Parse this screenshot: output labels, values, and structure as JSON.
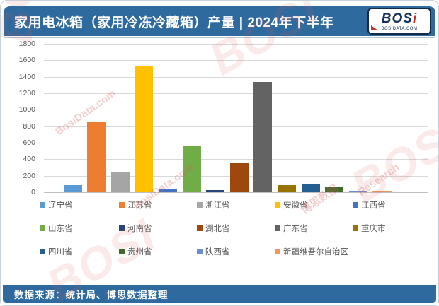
{
  "header": {
    "title": "家用电冰箱（家用冷冻冷藏箱）产量 | 2024年下半年",
    "logo": {
      "text": "BOS",
      "text_accent": "i",
      "subtext": "BOSIDATA.COM"
    }
  },
  "footer": {
    "source": "数据来源：统计局、博思数据整理"
  },
  "watermarks": {
    "brand": "BOSI",
    "cn_name": "博思数据",
    "research": "Research",
    "site": "BosiData.com"
  },
  "colors": {
    "titlebar": "#2f6a9f",
    "footerbar": "#2f6a9f",
    "panel_border": "#b7c7d1",
    "gridline": "#d9d9d9",
    "axis_text": "#595959",
    "legend_text": "#595959"
  },
  "chart_data": {
    "type": "bar",
    "title": "家用电冰箱（家用冷冻冷藏箱）产量 | 2024年下半年",
    "xlabel": "",
    "ylabel": "",
    "ylim": [
      0,
      1800
    ],
    "ytick_step": 200,
    "grid": true,
    "legend_position": "bottom",
    "categories": [
      "辽宁省",
      "江苏省",
      "浙江省",
      "安徽省",
      "江西省",
      "山东省",
      "河南省",
      "湖北省",
      "广东省",
      "重庆市",
      "四川省",
      "贵州省",
      "陕西省",
      "新疆维吾尔自治区"
    ],
    "values": [
      90,
      850,
      245,
      1530,
      40,
      560,
      30,
      360,
      1340,
      90,
      95,
      70,
      15,
      18
    ],
    "colors": [
      "#5b9bd5",
      "#ed7d31",
      "#a5a5a5",
      "#ffc000",
      "#4472c4",
      "#70ad47",
      "#264478",
      "#9e480e",
      "#636363",
      "#997300",
      "#255e91",
      "#43682b",
      "#698ed0",
      "#f1975a"
    ]
  }
}
